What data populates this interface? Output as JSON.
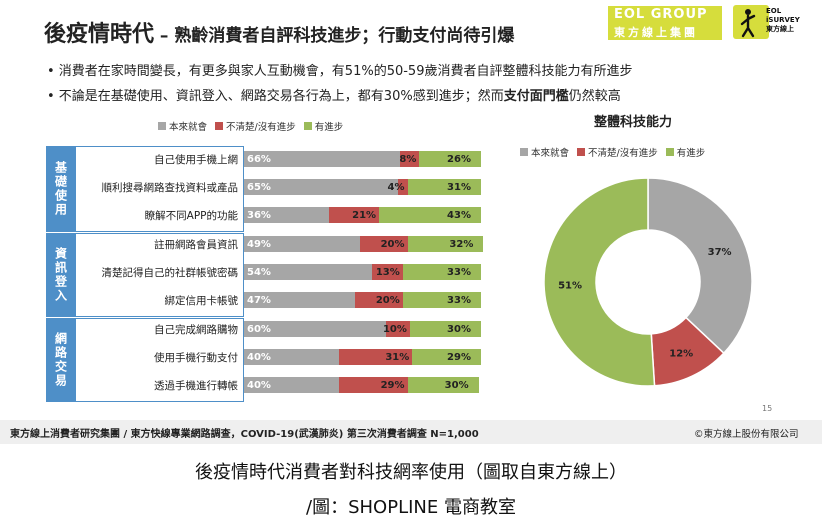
{
  "header": {
    "title": "後疫情時代",
    "subtitle": " – 熟齡消費者自評科技進步；行動支付尚待引爆",
    "logo_line1": "EOL GROUP",
    "logo_line2": "東方線上集團",
    "isurvey_line1": "EOL",
    "isurvey_line2": "iSURVEY",
    "isurvey_line3": "東方線上"
  },
  "bullets": [
    {
      "text": "• 消費者在家時間變長，有更多與家人互動機會，有51%的50-59歲消費者自評整體科技能力有所進步",
      "bold": ""
    },
    {
      "text": "• 不論是在基礎使用、資訊登入、網路交易各行為上，都有30%感到進步；然而",
      "bold": "支付面門檻",
      "after": "仍然較高"
    }
  ],
  "legend": [
    "本來就會",
    "不清楚/沒有進步",
    "有進步"
  ],
  "colors": {
    "gray": "#a6a6a6",
    "red": "#c0504d",
    "green": "#9bbb59",
    "blue": "#4e8fc8"
  },
  "groups": [
    {
      "name": "基礎使用"
    },
    {
      "name": "資訊登入"
    },
    {
      "name": "網路交易"
    }
  ],
  "chart_data": [
    {
      "type": "bar",
      "stacked": true,
      "orientation": "horizontal",
      "categories": [
        "自己使用手機上網",
        "順利搜尋網路查找資料或產品",
        "瞭解不同APP的功能",
        "註冊網路會員資訊",
        "清楚記得自己的社群帳號密碼",
        "綁定信用卡帳號",
        "自己完成網路購物",
        "使用手機行動支付",
        "透過手機進行轉帳"
      ],
      "series": [
        {
          "name": "本來就會",
          "values": [
            66,
            65,
            36,
            49,
            54,
            47,
            60,
            40,
            40
          ]
        },
        {
          "name": "不清楚/沒有進步",
          "values": [
            8,
            4,
            21,
            20,
            13,
            20,
            10,
            31,
            29
          ]
        },
        {
          "name": "有進步",
          "values": [
            26,
            31,
            43,
            32,
            33,
            33,
            30,
            29,
            30
          ]
        }
      ],
      "legend_position": "top"
    },
    {
      "type": "pie",
      "title": "整體科技能力",
      "labels": [
        "本來就會",
        "不清楚/沒有進步",
        "有進步"
      ],
      "values": [
        37,
        12,
        51
      ],
      "legend_position": "top"
    }
  ],
  "page_number": "15",
  "footer": {
    "left": "東方線上消費者研究集團 / 東方快線專業網路調查，COVID-19(武漢肺炎) 第三次消費者調查 N=1,000",
    "right": "©東方線上股份有限公司"
  },
  "caption": {
    "line1": "後疫情時代消費者對科技網率使用（圖取自東方線上）",
    "line2": "/圖：SHOPLINE  電商教室"
  }
}
